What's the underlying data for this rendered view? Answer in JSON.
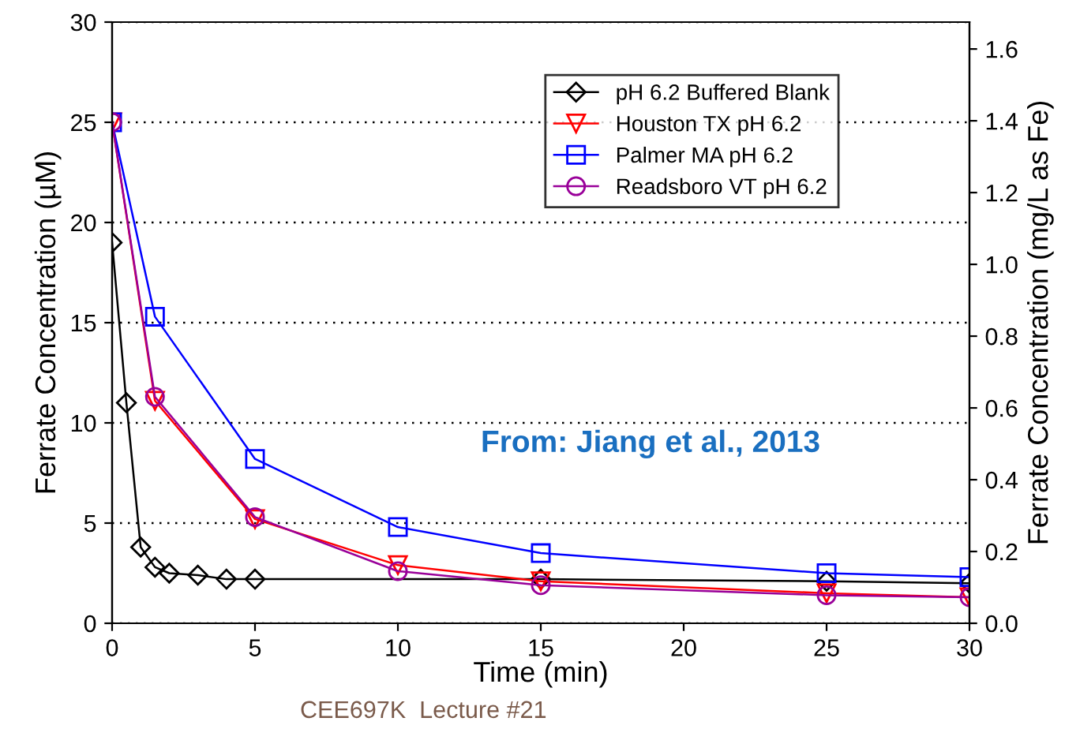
{
  "chart_data": {
    "type": "line",
    "xlabel": "Time (min)",
    "ylabel": "Ferrate Concentration (µM)",
    "y2label": "Ferrate Concentration (mg/L as Fe)",
    "xlim": [
      0,
      30
    ],
    "xticks": [
      0,
      5,
      10,
      15,
      20,
      25,
      30
    ],
    "ylim": [
      0,
      30
    ],
    "yticks": [
      0,
      5,
      10,
      15,
      20,
      25,
      30
    ],
    "y2lim": [
      0,
      1.675
    ],
    "y2ticks": [
      {
        "value": 0,
        "label": "0.0"
      },
      0.2,
      0.4,
      0.6,
      0.8,
      {
        "value": 1,
        "label": "1.0"
      },
      1.2,
      1.4,
      1.6
    ],
    "grid": "y",
    "legend": "top right",
    "series": [
      {
        "name": "pH 6.2 Buffered Blank",
        "color": "#000000",
        "marker": "diamond",
        "x": [
          0,
          0.5,
          1,
          1.5,
          2,
          3,
          4,
          5,
          15,
          25,
          30
        ],
        "values": [
          19,
          11,
          3.8,
          2.8,
          2.5,
          2.4,
          2.2,
          2.2,
          2.2,
          2.1,
          2.0
        ]
      },
      {
        "name": "Houston TX pH 6.2",
        "color": "#ff0000",
        "marker": "triangle",
        "x": [
          0,
          1.5,
          5,
          10,
          15,
          25,
          30
        ],
        "values": [
          25,
          11.1,
          5.2,
          2.9,
          2.1,
          1.5,
          1.3
        ]
      },
      {
        "name": "Palmer MA pH 6.2",
        "color": "#0000ff",
        "marker": "square",
        "x": [
          0,
          1.5,
          5,
          10,
          15,
          25,
          30
        ],
        "values": [
          25,
          15.3,
          8.2,
          4.8,
          3.5,
          2.5,
          2.3
        ]
      },
      {
        "name": "Readsboro VT pH 6.2",
        "color": "#990099",
        "marker": "circle",
        "x": [
          0,
          1.5,
          5,
          10,
          15,
          25,
          30
        ],
        "values": [
          25,
          11.3,
          5.3,
          2.6,
          1.9,
          1.4,
          1.3
        ]
      }
    ],
    "annotations": [
      "From: Jiang et al., 2013",
      "CEE697K  Lecture #21"
    ]
  }
}
